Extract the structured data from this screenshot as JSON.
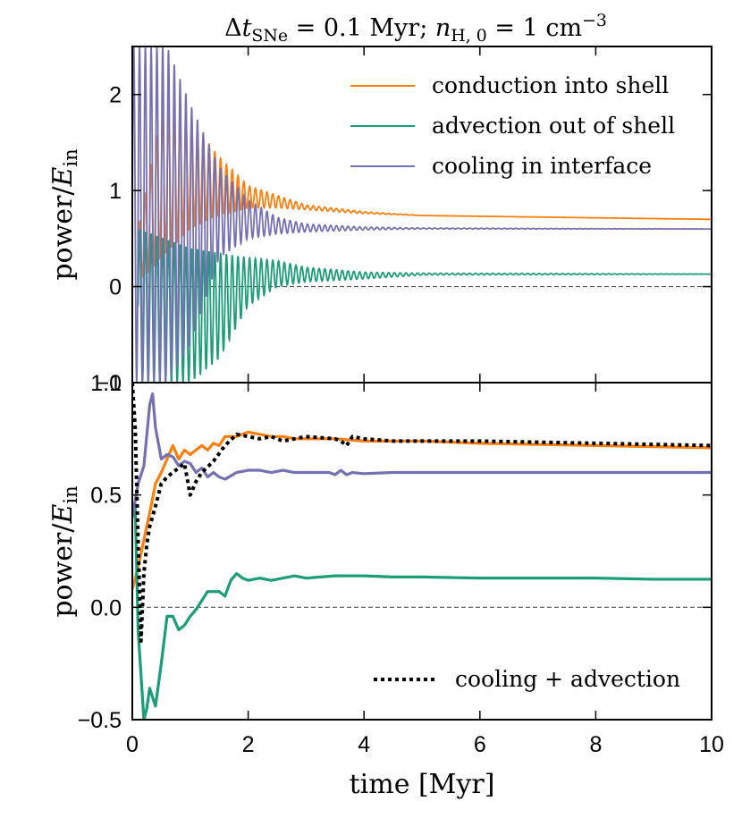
{
  "title": {
    "parts": [
      {
        "t": "Δ"
      },
      {
        "t": "t",
        "i": true
      },
      {
        "t": "SNe",
        "sub": true
      },
      {
        "t": " = 0.1 Myr;     "
      },
      {
        "t": "n",
        "i": true
      },
      {
        "t": "H, 0",
        "sub": true
      },
      {
        "t": " = 1 cm"
      },
      {
        "t": "−3",
        "sup": true
      }
    ]
  },
  "colors": {
    "conduction": "#ff7f0e",
    "advection": "#1b9e77",
    "cooling": "#7570b3",
    "combined": "#000000",
    "zero_line": "#555555"
  },
  "xlabel": "time [Myr]",
  "ylabel": {
    "base": "power/",
    "E": "E",
    "sub": "in"
  },
  "chart_data": [
    {
      "type": "line",
      "panel": "top",
      "xlim": [
        0,
        10
      ],
      "ylim": [
        -1,
        2.5
      ],
      "xticks": [
        0,
        2,
        4,
        6,
        8,
        10
      ],
      "yticks": [
        -1,
        0,
        1,
        2
      ],
      "ytick_labels": [
        "−1",
        "0",
        "1",
        "2"
      ],
      "hline": 0,
      "legend": {
        "position": "top-right",
        "entries": [
          {
            "key": "conduction",
            "label": "conduction into shell"
          },
          {
            "key": "advection",
            "label": "advection out of shell"
          },
          {
            "key": "cooling",
            "label": "cooling in interface"
          }
        ]
      },
      "series": [
        {
          "name": "conduction into shell",
          "key": "conduction",
          "style": "oscillating",
          "envelope_points": [
            [
              0.1,
              0.05,
              0.6
            ],
            [
              0.5,
              0.3,
              1.8
            ],
            [
              1.0,
              0.6,
              1.75
            ],
            [
              1.5,
              0.75,
              1.35
            ],
            [
              2.0,
              0.82,
              1.05
            ],
            [
              2.5,
              0.82,
              0.95
            ],
            [
              3.0,
              0.8,
              0.85
            ],
            [
              4.0,
              0.76,
              0.78
            ],
            [
              5.0,
              0.74,
              0.74
            ],
            [
              10.0,
              0.7,
              0.7
            ]
          ],
          "period": 0.1
        },
        {
          "name": "advection out of shell",
          "key": "advection",
          "style": "oscillating",
          "envelope_points": [
            [
              0.1,
              -1.0,
              0.6
            ],
            [
              1.0,
              -1.0,
              0.4
            ],
            [
              1.5,
              -0.75,
              0.35
            ],
            [
              2.0,
              -0.2,
              0.3
            ],
            [
              2.5,
              0.0,
              0.27
            ],
            [
              3.0,
              0.05,
              0.2
            ],
            [
              4.0,
              0.08,
              0.15
            ],
            [
              5.0,
              0.12,
              0.14
            ],
            [
              10.0,
              0.13,
              0.13
            ]
          ],
          "period": 0.1
        },
        {
          "name": "cooling in interface",
          "key": "cooling",
          "style": "oscillating",
          "envelope_points": [
            [
              0.0,
              -1.0,
              2.5
            ],
            [
              0.6,
              -1.0,
              2.5
            ],
            [
              1.0,
              -0.6,
              1.9
            ],
            [
              1.5,
              0.3,
              1.25
            ],
            [
              2.0,
              0.5,
              0.9
            ],
            [
              2.5,
              0.55,
              0.72
            ],
            [
              3.0,
              0.57,
              0.65
            ],
            [
              4.0,
              0.59,
              0.62
            ],
            [
              5.0,
              0.6,
              0.61
            ],
            [
              10.0,
              0.6,
              0.6
            ]
          ],
          "period": 0.1
        }
      ]
    },
    {
      "type": "line",
      "panel": "bottom",
      "xlim": [
        0,
        10
      ],
      "ylim": [
        -0.5,
        1.0
      ],
      "xticks": [
        0,
        2,
        4,
        6,
        8,
        10
      ],
      "xtick_labels": [
        "0",
        "2",
        "4",
        "6",
        "8",
        "10"
      ],
      "yticks": [
        -0.5,
        0.0,
        0.5,
        1.0
      ],
      "ytick_labels": [
        "−0.5",
        "0.0",
        "0.5",
        "1.0"
      ],
      "hline": 0,
      "legend": {
        "position": "bottom-right",
        "entries": [
          {
            "key": "combined",
            "label": "cooling + advection"
          }
        ]
      },
      "series": [
        {
          "name": "conduction into shell",
          "key": "conduction",
          "dashed": false,
          "x": [
            0.0,
            0.1,
            0.2,
            0.3,
            0.4,
            0.5,
            0.6,
            0.7,
            0.8,
            0.9,
            1.0,
            1.1,
            1.2,
            1.3,
            1.4,
            1.5,
            1.6,
            1.7,
            1.8,
            1.9,
            2.0,
            2.2,
            2.4,
            2.6,
            2.8,
            3.0,
            3.5,
            4.0,
            4.5,
            5.0,
            6.0,
            7.0,
            8.0,
            9.0,
            10.0
          ],
          "y": [
            0.08,
            0.18,
            0.3,
            0.42,
            0.55,
            0.6,
            0.66,
            0.72,
            0.66,
            0.7,
            0.68,
            0.7,
            0.72,
            0.7,
            0.73,
            0.72,
            0.76,
            0.76,
            0.76,
            0.77,
            0.78,
            0.77,
            0.76,
            0.76,
            0.75,
            0.75,
            0.75,
            0.74,
            0.74,
            0.74,
            0.73,
            0.725,
            0.72,
            0.715,
            0.71
          ]
        },
        {
          "name": "advection out of shell",
          "key": "advection",
          "dashed": false,
          "x": [
            0.05,
            0.1,
            0.15,
            0.2,
            0.25,
            0.3,
            0.4,
            0.5,
            0.6,
            0.7,
            0.8,
            0.9,
            1.0,
            1.1,
            1.2,
            1.3,
            1.5,
            1.6,
            1.7,
            1.8,
            1.9,
            2.0,
            2.2,
            2.4,
            2.6,
            2.8,
            3.0,
            3.5,
            4.0,
            4.5,
            5.0,
            6.0,
            7.0,
            8.0,
            9.0,
            10.0
          ],
          "y": [
            0.45,
            -0.1,
            -0.3,
            -0.5,
            -0.45,
            -0.36,
            -0.44,
            -0.25,
            -0.04,
            -0.04,
            -0.1,
            -0.08,
            -0.04,
            -0.01,
            0.03,
            0.07,
            0.07,
            0.05,
            0.12,
            0.15,
            0.13,
            0.12,
            0.13,
            0.12,
            0.13,
            0.14,
            0.13,
            0.14,
            0.14,
            0.135,
            0.135,
            0.13,
            0.13,
            0.13,
            0.125,
            0.125
          ]
        },
        {
          "name": "cooling in interface",
          "key": "cooling",
          "dashed": false,
          "x": [
            0.0,
            0.1,
            0.2,
            0.3,
            0.35,
            0.4,
            0.5,
            0.6,
            0.7,
            0.8,
            0.9,
            1.0,
            1.1,
            1.2,
            1.3,
            1.4,
            1.5,
            1.6,
            1.8,
            2.0,
            2.2,
            2.4,
            2.6,
            2.8,
            3.0,
            3.2,
            3.4,
            3.5,
            3.6,
            3.7,
            3.8,
            4.0,
            4.5,
            5.0,
            6.0,
            7.0,
            8.0,
            9.0,
            10.0
          ],
          "y": [
            0.4,
            0.55,
            0.63,
            0.9,
            0.95,
            0.8,
            0.66,
            0.68,
            0.67,
            0.63,
            0.65,
            0.64,
            0.6,
            0.62,
            0.58,
            0.6,
            0.58,
            0.57,
            0.6,
            0.61,
            0.61,
            0.6,
            0.61,
            0.6,
            0.6,
            0.6,
            0.6,
            0.59,
            0.61,
            0.59,
            0.6,
            0.595,
            0.6,
            0.6,
            0.6,
            0.6,
            0.6,
            0.6,
            0.6
          ]
        },
        {
          "name": "cooling + advection",
          "key": "combined",
          "dashed": true,
          "x": [
            0.0,
            0.05,
            0.1,
            0.15,
            0.2,
            0.25,
            0.3,
            0.4,
            0.5,
            0.6,
            0.7,
            0.8,
            0.9,
            1.0,
            1.1,
            1.2,
            1.4,
            1.6,
            1.8,
            2.0,
            2.2,
            2.4,
            2.6,
            2.8,
            3.0,
            3.5,
            3.6,
            3.7,
            3.8,
            4.0,
            4.5,
            5.0,
            6.0,
            7.0,
            8.0,
            9.0,
            10.0
          ],
          "y": [
            1.0,
            0.8,
            0.3,
            -0.15,
            0.15,
            0.28,
            0.36,
            0.45,
            0.55,
            0.58,
            0.6,
            0.62,
            0.64,
            0.5,
            0.56,
            0.6,
            0.65,
            0.72,
            0.77,
            0.76,
            0.75,
            0.76,
            0.74,
            0.75,
            0.76,
            0.75,
            0.74,
            0.72,
            0.76,
            0.75,
            0.74,
            0.74,
            0.74,
            0.735,
            0.73,
            0.725,
            0.72
          ]
        }
      ]
    }
  ]
}
